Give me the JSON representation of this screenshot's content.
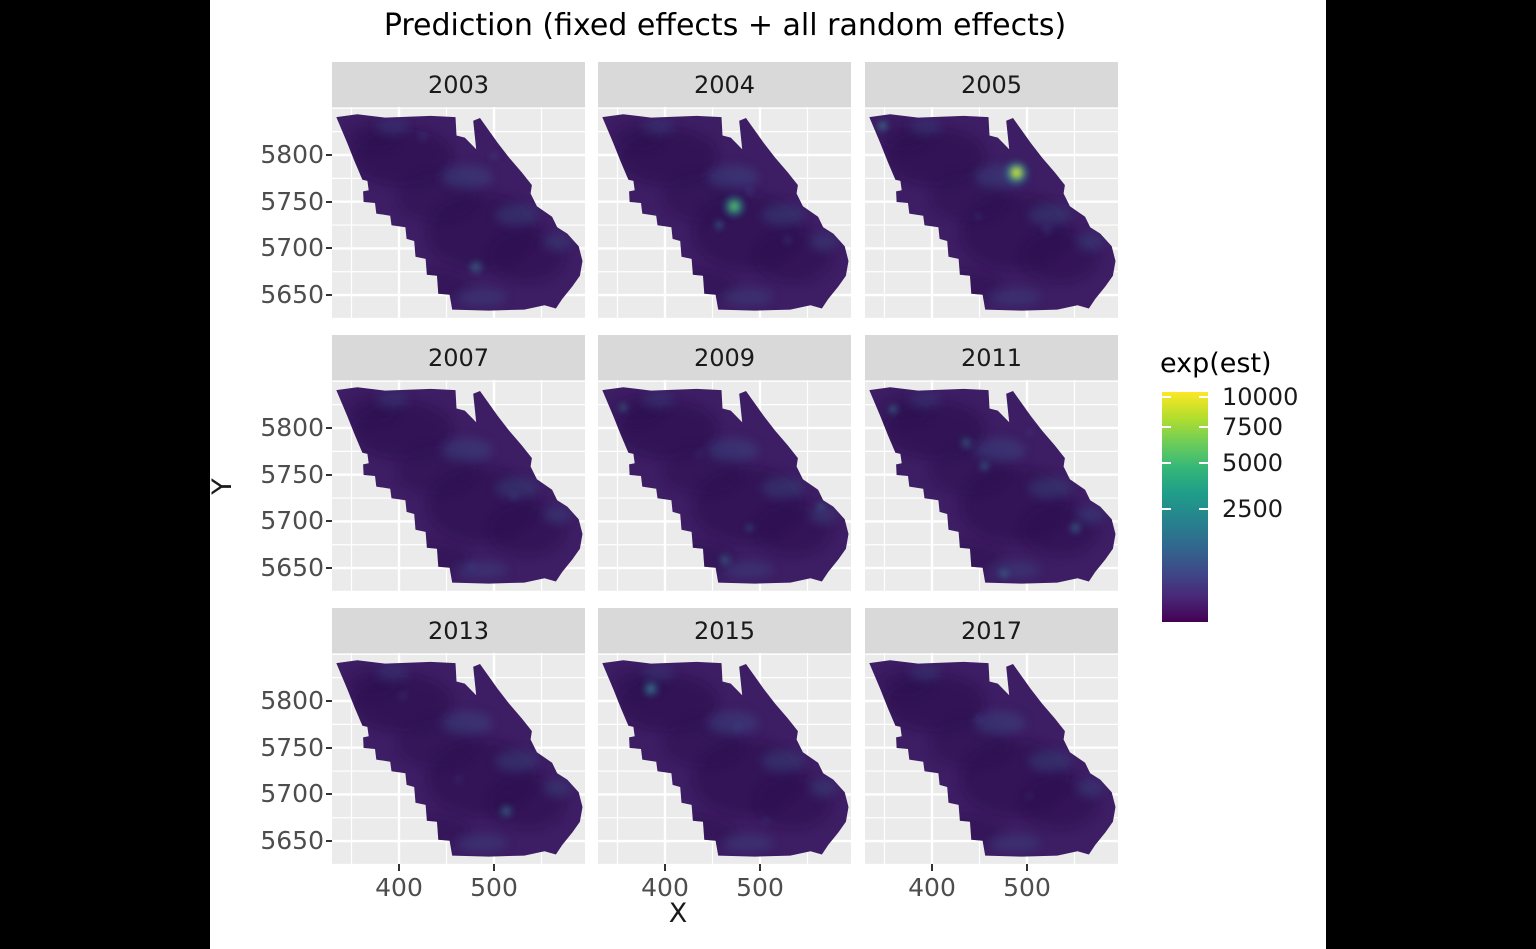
{
  "title": "Prediction (fixed effects + all random effects)",
  "axes": {
    "x_title": "X",
    "y_title": "Y",
    "x_ticks": [
      400,
      500
    ],
    "y_ticks": [
      5800,
      5750,
      5700,
      5650
    ]
  },
  "legend": {
    "title": "exp(est)",
    "tick_values": [
      10000,
      7500,
      5000,
      2500
    ],
    "low_color": "#440154",
    "high_color": "#FDE725"
  },
  "chart_data": {
    "type": "heatmap",
    "title": "Prediction (fixed effects + all random effects)",
    "xlabel": "X",
    "ylabel": "Y",
    "facet_variable": "year",
    "facets": [
      "2003",
      "2004",
      "2005",
      "2007",
      "2009",
      "2011",
      "2013",
      "2015",
      "2017"
    ],
    "grid": "on",
    "legend_position": "right",
    "panel_background": "#EBEBEB",
    "region_base_color": "#3D1D63",
    "x_range": [
      330,
      596
    ],
    "y_range": [
      5625,
      5851
    ],
    "x_minor": [
      350,
      450,
      550
    ],
    "y_minor": [
      5850,
      5825,
      5775,
      5725,
      5675,
      5625
    ],
    "color_scale": {
      "name": "viridis",
      "trans": "sqrt",
      "limits": [
        0,
        10200
      ],
      "breaks": [
        2500,
        5000,
        7500,
        10000
      ]
    },
    "hotspots": {
      "2003": [
        {
          "x": 481,
          "y": 5680,
          "est": 2000,
          "kind": "teal",
          "r": 9,
          "o": 0.55
        },
        {
          "x": 500,
          "y": 5799,
          "est": 800,
          "kind": "wisp",
          "r": 6,
          "o": 0.5
        },
        {
          "x": 425,
          "y": 5820,
          "est": 800,
          "kind": "wisp",
          "r": 7,
          "o": 0.4
        }
      ],
      "2004": [
        {
          "x": 473,
          "y": 5745,
          "est": 5500,
          "kind": "green",
          "r": 13,
          "o": 0.95
        },
        {
          "x": 457,
          "y": 5725,
          "est": 2000,
          "kind": "teal",
          "r": 7,
          "o": 0.5
        },
        {
          "x": 489,
          "y": 5761,
          "est": 900,
          "kind": "wisp",
          "r": 6,
          "o": 0.5
        },
        {
          "x": 529,
          "y": 5709,
          "est": 900,
          "kind": "wisp",
          "r": 7,
          "o": 0.45
        }
      ],
      "2005": [
        {
          "x": 489,
          "y": 5781,
          "est": 10000,
          "kind": "yellow",
          "r": 14,
          "o": 1
        },
        {
          "x": 348,
          "y": 5831,
          "est": 2500,
          "kind": "teal",
          "r": 8,
          "o": 0.65
        },
        {
          "x": 449,
          "y": 5734,
          "est": 800,
          "kind": "wisp",
          "r": 6,
          "o": 0.4
        },
        {
          "x": 521,
          "y": 5720,
          "est": 800,
          "kind": "wisp",
          "r": 7,
          "o": 0.4
        }
      ],
      "2007": [
        {
          "x": 521,
          "y": 5727,
          "est": 700,
          "kind": "wisp",
          "r": 6,
          "o": 0.4
        },
        {
          "x": 476,
          "y": 5653,
          "est": 700,
          "kind": "wisp",
          "r": 6,
          "o": 0.35
        }
      ],
      "2009": [
        {
          "x": 356,
          "y": 5822,
          "est": 1800,
          "kind": "teal",
          "r": 7,
          "o": 0.5
        },
        {
          "x": 463,
          "y": 5659,
          "est": 1800,
          "kind": "teal",
          "r": 8,
          "o": 0.5
        },
        {
          "x": 489,
          "y": 5693,
          "est": 1200,
          "kind": "teal",
          "r": 6,
          "o": 0.4
        },
        {
          "x": 564,
          "y": 5716,
          "est": 1500,
          "kind": "teal",
          "r": 6,
          "o": 0.45
        },
        {
          "x": 436,
          "y": 5772,
          "est": 800,
          "kind": "wisp",
          "r": 6,
          "o": 0.35
        }
      ],
      "2011": [
        {
          "x": 359,
          "y": 5820,
          "est": 2200,
          "kind": "teal",
          "r": 7,
          "o": 0.6
        },
        {
          "x": 436,
          "y": 5784,
          "est": 1800,
          "kind": "teal",
          "r": 8,
          "o": 0.5
        },
        {
          "x": 455,
          "y": 5759,
          "est": 1800,
          "kind": "teal",
          "r": 7,
          "o": 0.5
        },
        {
          "x": 551,
          "y": 5693,
          "est": 2000,
          "kind": "teal",
          "r": 8,
          "o": 0.55
        },
        {
          "x": 476,
          "y": 5644,
          "est": 1500,
          "kind": "teal",
          "r": 7,
          "o": 0.45
        },
        {
          "x": 503,
          "y": 5795,
          "est": 800,
          "kind": "wisp",
          "r": 6,
          "o": 0.4
        }
      ],
      "2013": [
        {
          "x": 513,
          "y": 5682,
          "est": 2200,
          "kind": "teal",
          "r": 9,
          "o": 0.55
        },
        {
          "x": 404,
          "y": 5806,
          "est": 800,
          "kind": "wisp",
          "r": 6,
          "o": 0.4
        },
        {
          "x": 463,
          "y": 5716,
          "est": 700,
          "kind": "wisp",
          "r": 6,
          "o": 0.35
        }
      ],
      "2015": [
        {
          "x": 385,
          "y": 5813,
          "est": 2800,
          "kind": "teal",
          "r": 10,
          "o": 0.75
        },
        {
          "x": 476,
          "y": 5772,
          "est": 800,
          "kind": "wisp",
          "r": 6,
          "o": 0.35
        },
        {
          "x": 506,
          "y": 5671,
          "est": 800,
          "kind": "wisp",
          "r": 6,
          "o": 0.35
        }
      ],
      "2017": [
        {
          "x": 449,
          "y": 5781,
          "est": 600,
          "kind": "wisp",
          "r": 6,
          "o": 0.3
        },
        {
          "x": 503,
          "y": 5698,
          "est": 700,
          "kind": "wisp",
          "r": 6,
          "o": 0.3
        }
      ]
    }
  }
}
